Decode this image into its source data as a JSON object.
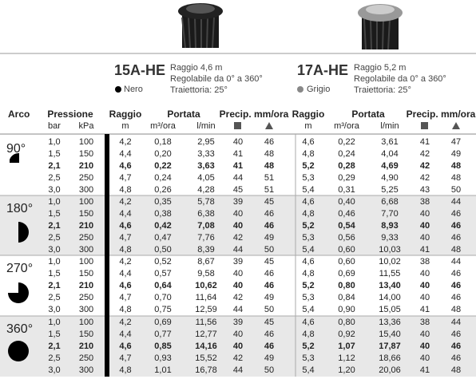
{
  "products": [
    {
      "name": "15A-HE",
      "specs": [
        "Raggio 4,6 m",
        "Regolabile da 0° a 360°",
        "Traiettoria: 25°"
      ],
      "color": "Nero"
    },
    {
      "name": "17A-HE",
      "specs": [
        "Raggio 5,2 m",
        "Regolabile da 0° a 360°",
        "Traiettoria: 25°"
      ],
      "color": "Grigio"
    }
  ],
  "header": {
    "arc": "Arco",
    "pressure": "Pressione",
    "bar": "bar",
    "kpa": "kPa",
    "groups": [
      {
        "radius": "Raggio",
        "radius_unit": "m",
        "flow": "Portata",
        "flow_m3": "m³/ora",
        "flow_lmin": "l/min",
        "precip": "Precip. mm/ora"
      },
      {
        "radius": "Raggio",
        "radius_unit": "m",
        "flow": "Portata",
        "flow_m3": "m³/ora",
        "flow_lmin": "l/min",
        "precip": "Precip. mm/ora"
      }
    ]
  },
  "sections": [
    {
      "arc": "90°",
      "rows": [
        [
          "1,0",
          "100",
          "4,2",
          "0,18",
          "2,95",
          "40",
          "46",
          "4,6",
          "0,22",
          "3,61",
          "41",
          "47"
        ],
        [
          "1,5",
          "150",
          "4,4",
          "0,20",
          "3,33",
          "41",
          "48",
          "4,8",
          "0,24",
          "4,04",
          "42",
          "49"
        ],
        [
          "2,1",
          "210",
          "4,6",
          "0,22",
          "3,63",
          "41",
          "48",
          "5,2",
          "0,28",
          "4,69",
          "42",
          "48"
        ],
        [
          "2,5",
          "250",
          "4,7",
          "0,24",
          "4,05",
          "44",
          "51",
          "5,3",
          "0,29",
          "4,90",
          "42",
          "48"
        ],
        [
          "3,0",
          "300",
          "4,8",
          "0,26",
          "4,28",
          "45",
          "51",
          "5,4",
          "0,31",
          "5,25",
          "43",
          "50"
        ]
      ]
    },
    {
      "arc": "180°",
      "rows": [
        [
          "1,0",
          "100",
          "4,2",
          "0,35",
          "5,78",
          "39",
          "45",
          "4,6",
          "0,40",
          "6,68",
          "38",
          "44"
        ],
        [
          "1,5",
          "150",
          "4,4",
          "0,38",
          "6,38",
          "40",
          "46",
          "4,8",
          "0,46",
          "7,70",
          "40",
          "46"
        ],
        [
          "2,1",
          "210",
          "4,6",
          "0,42",
          "7,08",
          "40",
          "46",
          "5,2",
          "0,54",
          "8,93",
          "40",
          "46"
        ],
        [
          "2,5",
          "250",
          "4,7",
          "0,47",
          "7,76",
          "42",
          "49",
          "5,3",
          "0,56",
          "9,33",
          "40",
          "46"
        ],
        [
          "3,0",
          "300",
          "4,8",
          "0,50",
          "8,39",
          "44",
          "50",
          "5,4",
          "0,60",
          "10,03",
          "41",
          "48"
        ]
      ]
    },
    {
      "arc": "270°",
      "rows": [
        [
          "1,0",
          "100",
          "4,2",
          "0,52",
          "8,67",
          "39",
          "45",
          "4,6",
          "0,60",
          "10,02",
          "38",
          "44"
        ],
        [
          "1,5",
          "150",
          "4,4",
          "0,57",
          "9,58",
          "40",
          "46",
          "4,8",
          "0,69",
          "11,55",
          "40",
          "46"
        ],
        [
          "2,1",
          "210",
          "4,6",
          "0,64",
          "10,62",
          "40",
          "46",
          "5,2",
          "0,80",
          "13,40",
          "40",
          "46"
        ],
        [
          "2,5",
          "250",
          "4,7",
          "0,70",
          "11,64",
          "42",
          "49",
          "5,3",
          "0,84",
          "14,00",
          "40",
          "46"
        ],
        [
          "3,0",
          "300",
          "4,8",
          "0,75",
          "12,59",
          "44",
          "50",
          "5,4",
          "0,90",
          "15,05",
          "41",
          "48"
        ]
      ]
    },
    {
      "arc": "360°",
      "rows": [
        [
          "1,0",
          "100",
          "4,2",
          "0,69",
          "11,56",
          "39",
          "45",
          "4,6",
          "0,80",
          "13,36",
          "38",
          "44"
        ],
        [
          "1,5",
          "150",
          "4,4",
          "0,77",
          "12,77",
          "40",
          "46",
          "4,8",
          "0,92",
          "15,40",
          "40",
          "46"
        ],
        [
          "2,1",
          "210",
          "4,6",
          "0,85",
          "14,16",
          "40",
          "46",
          "5,2",
          "1,07",
          "17,87",
          "40",
          "46"
        ],
        [
          "2,5",
          "250",
          "4,7",
          "0,93",
          "15,52",
          "42",
          "49",
          "5,3",
          "1,12",
          "18,66",
          "40",
          "46"
        ],
        [
          "3,0",
          "300",
          "4,8",
          "1,01",
          "16,78",
          "44",
          "50",
          "5,4",
          "1,20",
          "20,06",
          "41",
          "48"
        ]
      ]
    }
  ]
}
